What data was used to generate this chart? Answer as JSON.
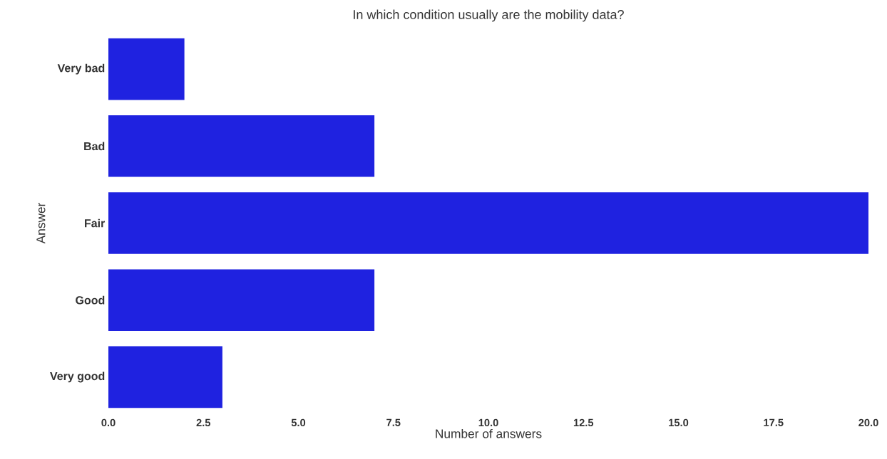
{
  "chart_data": {
    "type": "bar",
    "orientation": "horizontal",
    "title": "In which condition usually are the mobility data?",
    "xlabel": "Number of answers",
    "ylabel": "Answer",
    "categories": [
      "Very bad",
      "Bad",
      "Fair",
      "Good",
      "Very good"
    ],
    "values": [
      2,
      7,
      20,
      7,
      3
    ],
    "color": "#1f22e0",
    "xlim": [
      0,
      20
    ],
    "xticks": [
      {
        "value": 0,
        "label": "0.0"
      },
      {
        "value": 2.5,
        "label": "2.5"
      },
      {
        "value": 5,
        "label": "5.0"
      },
      {
        "value": 7.5,
        "label": "7.5"
      },
      {
        "value": 10,
        "label": "10.0"
      },
      {
        "value": 12.5,
        "label": "12.5"
      },
      {
        "value": 15,
        "label": "15.0"
      },
      {
        "value": 17.5,
        "label": "17.5"
      },
      {
        "value": 20,
        "label": "20.0"
      }
    ]
  }
}
